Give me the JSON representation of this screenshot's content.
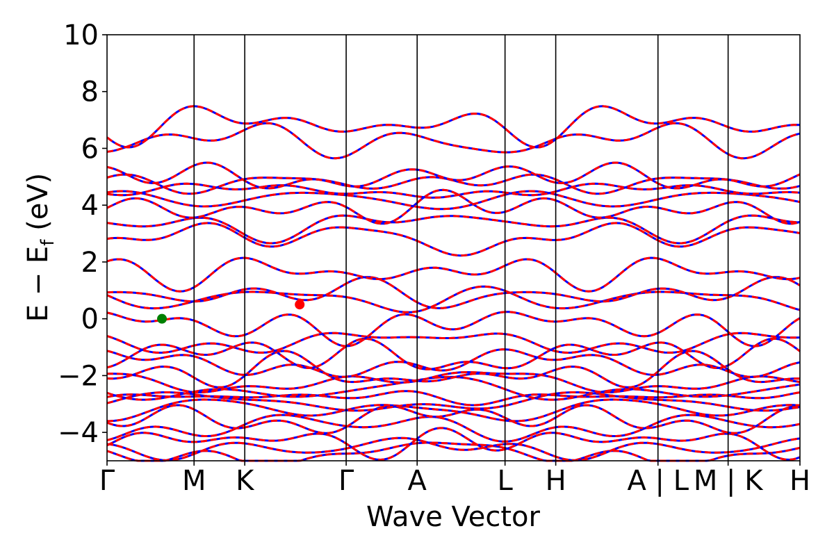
{
  "chart_data": {
    "type": "line",
    "title": "",
    "xlabel": "Wave Vector",
    "ylabel_parts": {
      "main": "E − E",
      "sub": "f",
      "unit": " (eV)"
    },
    "ylim": [
      -5,
      10
    ],
    "yticks": [
      -4,
      -2,
      0,
      2,
      4,
      6,
      8,
      10
    ],
    "ytick_labels": [
      "−4",
      "−2",
      "0",
      "2",
      "4",
      "6",
      "8",
      "10"
    ],
    "kpath_length": 8.2,
    "kpoints": [
      {
        "label": "Γ",
        "x": 0.0
      },
      {
        "label": "M",
        "x": 1.03
      },
      {
        "label": "K",
        "x": 1.63
      },
      {
        "label": "Γ",
        "x": 2.83
      },
      {
        "label": "A",
        "x": 3.67
      },
      {
        "label": "L",
        "x": 4.71
      },
      {
        "label": "H",
        "x": 5.31
      },
      {
        "label": "A | L",
        "x": 6.52
      },
      {
        "label": "M | K",
        "x": 7.35
      },
      {
        "label": "H",
        "x": 8.2
      }
    ],
    "series": [
      {
        "color": "#0000ff",
        "style": "solid",
        "note": "spin-up bands"
      },
      {
        "color": "#ff0000",
        "style": "dashed",
        "note": "spin-down bands"
      }
    ],
    "band_energies_at_gamma": [
      -4.75,
      -4.55,
      -4.3,
      -3.8,
      -3.5,
      -3.2,
      -2.95,
      -2.75,
      -2.5,
      -2.2,
      -1.95,
      -1.6,
      -1.3,
      -0.8,
      -0.2,
      0.7,
      0.85,
      1.65,
      2.85,
      3.35,
      3.9,
      4.2,
      4.5,
      4.8,
      5.0,
      6.25,
      6.85
    ],
    "band_markers": [
      {
        "name": "VBM",
        "x": 0.65,
        "y": 0.0,
        "color": "#008000"
      },
      {
        "name": "CBM",
        "x": 2.28,
        "y": 0.5,
        "color": "#ff0000"
      }
    ],
    "grid": false,
    "legend": "none"
  }
}
